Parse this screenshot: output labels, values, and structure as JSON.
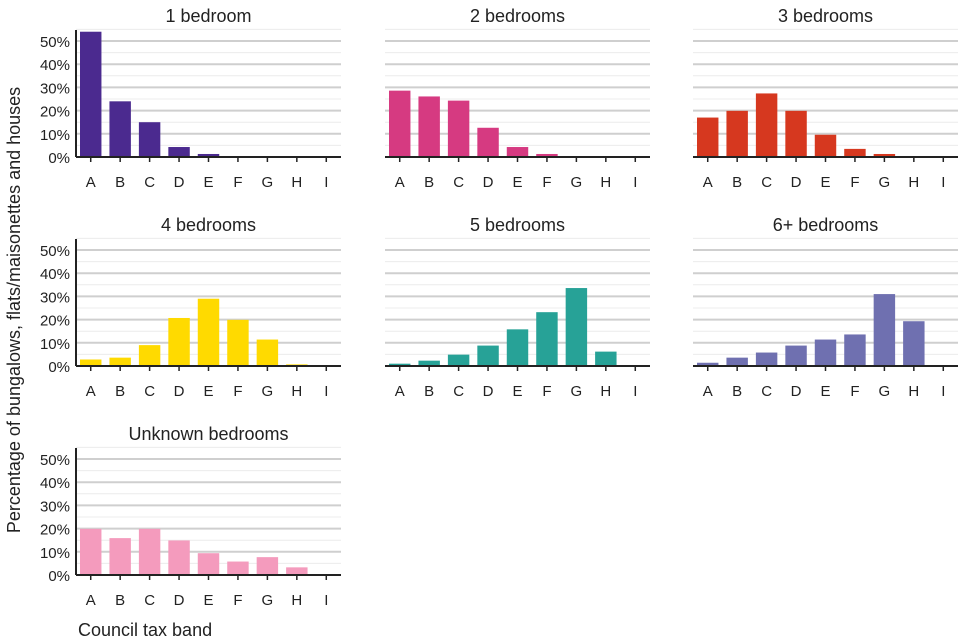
{
  "chart_data": {
    "type": "bar",
    "layout": "small-multiples",
    "ylabel": "Percentage of bungalows, flats/maisonettes and houses",
    "xlabel": "Council tax band",
    "categories": [
      "A",
      "B",
      "C",
      "D",
      "E",
      "F",
      "G",
      "H",
      "I"
    ],
    "ylim": [
      0,
      55
    ],
    "yticks": [
      "0%",
      "10%",
      "20%",
      "30%",
      "40%",
      "50%"
    ],
    "grid": true,
    "panels": [
      {
        "title": "1 bedroom",
        "color": "#4B2A8F",
        "values": [
          54,
          24,
          15,
          4.3,
          1.3,
          0,
          0,
          0,
          0
        ]
      },
      {
        "title": "2 bedrooms",
        "color": "#D63A81",
        "values": [
          28.6,
          26.1,
          24.3,
          12.6,
          4.3,
          1.3,
          0.4,
          0,
          0
        ]
      },
      {
        "title": "3 bedrooms",
        "color": "#D6381F",
        "values": [
          17,
          19.9,
          27.4,
          19.9,
          9.6,
          3.5,
          1.3,
          0,
          0
        ]
      },
      {
        "title": "4 bedrooms",
        "color": "#FFDA00",
        "values": [
          2.8,
          3.6,
          9,
          20.7,
          29,
          19.9,
          11.4,
          0.7,
          0
        ]
      },
      {
        "title": "5 bedrooms",
        "color": "#27A297",
        "values": [
          1,
          2.3,
          4.9,
          8.8,
          15.8,
          23.2,
          33.6,
          6.2,
          0
        ]
      },
      {
        "title": "6+ bedrooms",
        "color": "#6F70B0",
        "values": [
          1.4,
          3.6,
          5.8,
          8.8,
          11.4,
          13.6,
          31,
          19.3,
          0.3
        ]
      },
      {
        "title": "Unknown bedrooms",
        "color": "#F49BBD",
        "values": [
          19.9,
          15.9,
          19.9,
          14.9,
          9.4,
          5.8,
          7.7,
          3.3,
          0
        ]
      }
    ]
  }
}
